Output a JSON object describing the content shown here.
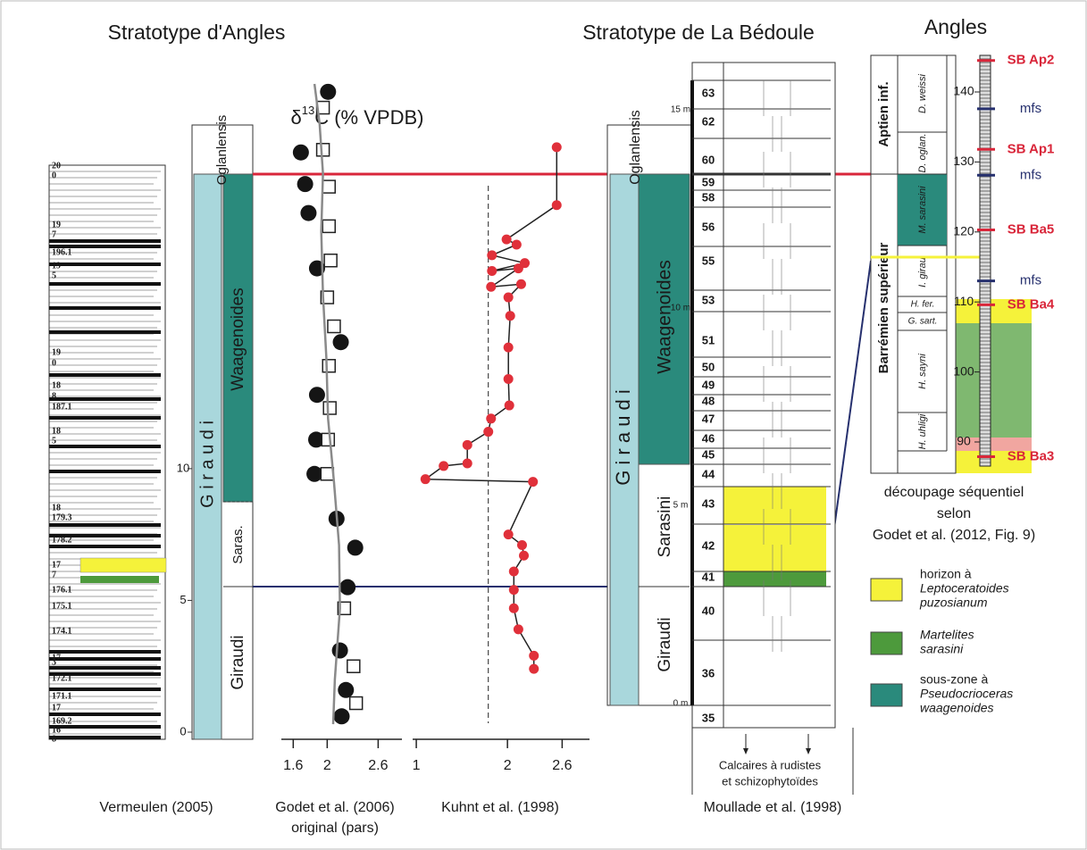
{
  "titles": [
    "Stratotype d'Angles",
    "Stratotype de La Bédoule",
    "Angles"
  ],
  "vermeulen": {
    "bed_labels": [
      "20",
      "0",
      "19",
      "7",
      "196.1",
      "19",
      "5",
      "19",
      "0",
      "18",
      "8",
      "187.1",
      "18",
      "5",
      "18",
      "179.3",
      "178.2",
      "17",
      "7",
      "176.1",
      "175.1",
      "174.1",
      "17",
      "3",
      "172.1",
      "171.1",
      "17",
      "169.2",
      "16",
      "8"
    ],
    "caption": "Vermeulen (2005)"
  },
  "angles_zones": {
    "oglanlensis": "Oglanlensis",
    "giraudi_zone": "G i r a u d i",
    "waagenoides": "Waagenoides",
    "sarasini": "Saras.",
    "giraudi": "Giraudi"
  },
  "bedoule_zones": {
    "oglanlensis": "Oglanlensis",
    "giraudi_zone": "G i r a u d i",
    "waagenoides": "Waagenoides",
    "sarasini": "Sarasini",
    "giraudi": "Giraudi"
  },
  "isotope_label": {
    "delta": "δ",
    "superscript": "13",
    "rest": "C (% VPDB)"
  },
  "chart_data": [
    {
      "type": "scatter",
      "caption": [
        "Godet et al. (2006)",
        "original (pars)"
      ],
      "xlim": [
        1.46,
        2.88
      ],
      "xticks": [
        1.6,
        2,
        2.6
      ],
      "ylim": [
        0,
        24.6
      ],
      "yticks": [
        0,
        5,
        10
      ],
      "series": [
        {
          "marker": "circle",
          "color": "#151515",
          "x": [
            2.01,
            1.69,
            1.74,
            1.78,
            1.88,
            2.16,
            1.88,
            1.87,
            1.85,
            2.11,
            2.33,
            2.24,
            2.15,
            2.22,
            2.17
          ],
          "values": [
            24.3,
            22.0,
            20.8,
            19.7,
            17.6,
            14.8,
            12.8,
            11.1,
            9.8,
            8.1,
            7.0,
            5.5,
            3.1,
            1.6,
            0.6
          ]
        },
        {
          "marker": "square",
          "color": "#ffffff",
          "x": [
            1.95,
            1.95,
            2.02,
            2.02,
            2.04,
            2.0,
            2.08,
            2.02,
            2.03,
            2.01,
            2.0,
            2.2,
            2.31,
            2.34
          ],
          "values": [
            23.7,
            22.1,
            20.7,
            19.2,
            17.9,
            16.5,
            15.4,
            13.9,
            12.3,
            11.1,
            9.8,
            4.7,
            2.5,
            1.1
          ]
        },
        {
          "marker": "line",
          "color": "#8a8a8a",
          "x": [
            1.85,
            1.91,
            1.95,
            1.93,
            1.95,
            1.99,
            2.01,
            2.08,
            2.14,
            2.15,
            2.09,
            2.07
          ],
          "values": [
            24.6,
            23.1,
            21.2,
            19.0,
            16.6,
            14.2,
            11.9,
            9.5,
            7.1,
            4.7,
            2.0,
            0.3
          ]
        }
      ]
    },
    {
      "type": "line",
      "caption": [
        "Kuhnt et al. (1998)"
      ],
      "xlim": [
        0.96,
        2.9
      ],
      "xticks": [
        1,
        2,
        2.6
      ],
      "ylim": [
        0,
        24.6
      ],
      "reference_x": 1.79,
      "series": [
        {
          "color": "#e0303a",
          "x": [
            2.54,
            2.54,
            1.99,
            2.1,
            1.83,
            2.19,
            1.83,
            2.12,
            1.82,
            2.15,
            2.01,
            2.03,
            2.01,
            2.01,
            2.02,
            1.82,
            1.79,
            1.56,
            1.56,
            1.3,
            1.1,
            2.28,
            2.01,
            2.16,
            2.18,
            2.07,
            2.07,
            2.07,
            2.12,
            2.29,
            2.29
          ],
          "values": [
            22.2,
            20.0,
            18.7,
            18.5,
            18.1,
            17.8,
            17.5,
            17.6,
            16.9,
            17.0,
            16.5,
            15.8,
            14.6,
            13.4,
            12.4,
            11.9,
            11.4,
            10.9,
            10.2,
            10.1,
            9.6,
            9.5,
            7.5,
            7.1,
            6.7,
            6.1,
            5.4,
            4.7,
            3.9,
            2.9,
            2.4
          ]
        }
      ]
    }
  ],
  "bedoule": {
    "beds": [
      "63",
      "62",
      "60",
      "59",
      "58",
      "56",
      "55",
      "53",
      "51",
      "50",
      "49",
      "48",
      "47",
      "46",
      "45",
      "44",
      "43",
      "42",
      "41",
      "40",
      "36",
      "35"
    ],
    "meters": [
      "15 m",
      "10 m",
      "5 m",
      "0 m"
    ],
    "base_note": [
      "Calcaires à rudistes",
      "et schizophytoïdes"
    ],
    "caption": "Moullade et al. (1998)"
  },
  "angles_sequence": {
    "stages": [
      "Aptien inf.",
      "Barrémien supérieur"
    ],
    "zones": [
      "D. weissi",
      "D. oglan.",
      "M. sarasini",
      "I. girau.",
      "H. fer.",
      "G. sart.",
      "H. sayni",
      "H. uhligi"
    ],
    "ticks": [
      90,
      100,
      110,
      120,
      130,
      140
    ],
    "surfaces": [
      {
        "label": "SB Ap2",
        "level": 144.5,
        "color": "#d9263a"
      },
      {
        "label": "mfs",
        "level": 137.6,
        "color": "#26306e"
      },
      {
        "label": "SB Ap1",
        "level": 131.8,
        "color": "#d9263a"
      },
      {
        "label": "mfs",
        "level": 128.1,
        "color": "#26306e"
      },
      {
        "label": "SB Ba5",
        "level": 120.3,
        "color": "#d9263a"
      },
      {
        "label": "mfs",
        "level": 113.0,
        "color": "#26306e"
      },
      {
        "label": "SB Ba4",
        "level": 109.6,
        "color": "#d9263a"
      },
      {
        "label": "SB Ba3",
        "level": 87.9,
        "color": "#d9263a"
      }
    ],
    "caption": [
      "découpage séquentiel",
      "selon",
      "Godet et al. (2012, Fig. 9)"
    ]
  },
  "legend": [
    {
      "color": "#f5f23a",
      "lines": [
        "horizon à",
        "Leptoceratoides",
        "puzosianum"
      ]
    },
    {
      "color": "#4d9a3c",
      "lines": [
        "Martelites",
        "sarasini"
      ]
    },
    {
      "color": "#2a8a7c",
      "lines": [
        "sous-zone à",
        "Pseudocrioceras",
        "waagenoides"
      ]
    }
  ]
}
